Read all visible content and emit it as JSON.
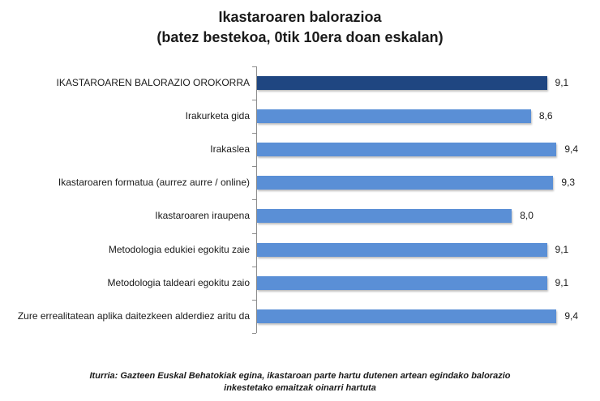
{
  "chart_data": {
    "type": "bar",
    "orientation": "horizontal",
    "title": "Ikastaroaren balorazioa",
    "subtitle": "(batez bestekoa, 0tik 10era doan eskalan)",
    "categories": [
      "IKASTAROAREN BALORAZIO OROKORRA",
      "Irakurketa gida",
      "Irakaslea",
      "Ikastaroaren formatua (aurrez aurre / online)",
      "Ikastaroaren iraupena",
      "Metodologia edukiei egokitu zaie",
      "Metodologia taldeari egokitu zaio",
      "Zure errealitatean aplika daitezkeen alderdiez aritu da"
    ],
    "values": [
      9.1,
      8.6,
      9.4,
      9.3,
      8.0,
      9.1,
      9.1,
      9.4
    ],
    "value_labels": [
      "9,1",
      "8,6",
      "9,4",
      "9,3",
      "8,0",
      "9,1",
      "9,1",
      "9,4"
    ],
    "xlabel": "",
    "ylabel": "",
    "xlim": [
      0,
      10
    ],
    "grid": false,
    "legend": null,
    "colors": {
      "highlight": "#1f4681",
      "default": "#5a8fd6"
    },
    "source_note": "Iturria: Gazteen Euskal Behatokiak egina, ikastaroan parte hartu dutenen artean egindako balorazio inkestetako emaitzak oinarri hartuta"
  },
  "title": {
    "line1": "Ikastaroaren balorazioa",
    "line2": "(batez bestekoa, 0tik 10era doan eskalan)"
  },
  "rows": [
    {
      "label": "IKASTAROAREN BALORAZIO OROKORRA",
      "value": 9.1,
      "value_label": "9,1",
      "highlight": true
    },
    {
      "label": "Irakurketa gida",
      "value": 8.6,
      "value_label": "8,6",
      "highlight": false
    },
    {
      "label": "Irakaslea",
      "value": 9.4,
      "value_label": "9,4",
      "highlight": false
    },
    {
      "label": "Ikastaroaren formatua (aurrez aurre / online)",
      "value": 9.3,
      "value_label": "9,3",
      "highlight": false
    },
    {
      "label": "Ikastaroaren iraupena",
      "value": 8.0,
      "value_label": "8,0",
      "highlight": false
    },
    {
      "label": "Metodologia edukiei egokitu zaie",
      "value": 9.1,
      "value_label": "9,1",
      "highlight": false
    },
    {
      "label": "Metodologia taldeari egokitu zaio",
      "value": 9.1,
      "value_label": "9,1",
      "highlight": false
    },
    {
      "label": "Zure errealitatean aplika daitezkeen alderdiez aritu da",
      "value": 9.4,
      "value_label": "9,4",
      "highlight": false
    }
  ],
  "footnote": {
    "line1": "Iturria: Gazteen Euskal Behatokiak egina, ikastaroan parte hartu dutenen artean egindako balorazio",
    "line2": "inkestetako emaitzak oinarri hartuta"
  }
}
